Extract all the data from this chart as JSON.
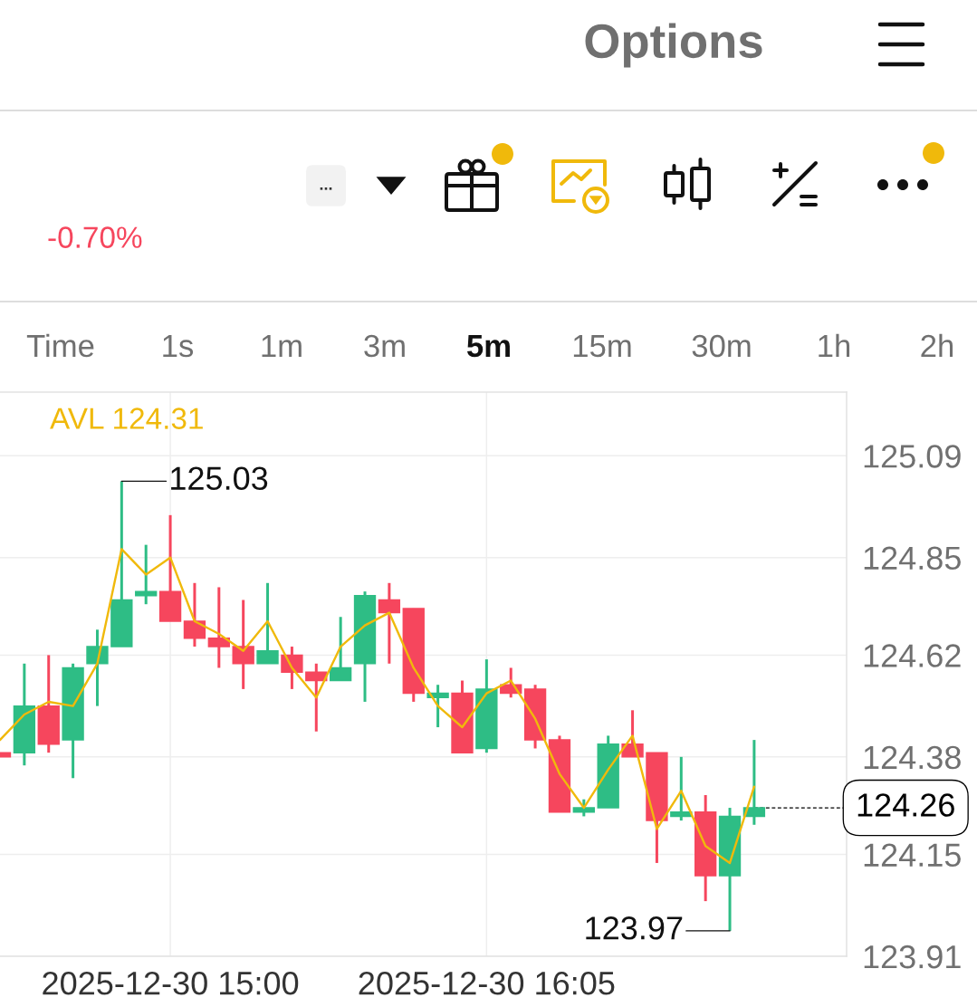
{
  "chart_data": {
    "type": "candlestick",
    "subtitle": "-0.70%",
    "x": [
      "2025-12-30T14:25",
      "2025-12-30T14:30",
      "2025-12-30T14:35",
      "2025-12-30T14:40",
      "2025-12-30T14:45",
      "2025-12-30T14:50",
      "2025-12-30T14:55",
      "2025-12-30T15:00",
      "2025-12-30T15:05",
      "2025-12-30T15:10",
      "2025-12-30T15:15",
      "2025-12-30T15:20",
      "2025-12-30T15:25",
      "2025-12-30T15:30",
      "2025-12-30T15:35",
      "2025-12-30T15:40",
      "2025-12-30T15:45",
      "2025-12-30T15:50",
      "2025-12-30T15:55",
      "2025-12-30T16:00",
      "2025-12-30T16:05",
      "2025-12-30T16:10",
      "2025-12-30T16:15",
      "2025-12-30T16:20",
      "2025-12-30T16:25",
      "2025-12-30T16:30",
      "2025-12-30T16:35",
      "2025-12-30T16:40",
      "2025-12-30T16:45",
      "2025-12-30T16:50",
      "2025-12-30T16:55",
      "2025-12-30T17:00"
    ],
    "ohlc": [
      [
        124.39,
        124.39,
        124.38,
        124.38
      ],
      [
        124.39,
        124.6,
        124.36,
        124.5
      ],
      [
        124.5,
        124.62,
        124.39,
        124.41
      ],
      [
        124.42,
        124.6,
        124.33,
        124.59
      ],
      [
        124.6,
        124.68,
        124.5,
        124.64
      ],
      [
        124.64,
        125.03,
        124.64,
        124.75
      ],
      [
        124.76,
        124.88,
        124.74,
        124.77
      ],
      [
        124.77,
        124.95,
        124.7,
        124.7
      ],
      [
        124.7,
        124.79,
        124.64,
        124.66
      ],
      [
        124.66,
        124.78,
        124.59,
        124.64
      ],
      [
        124.64,
        124.75,
        124.54,
        124.6
      ],
      [
        124.6,
        124.79,
        124.6,
        124.63
      ],
      [
        124.62,
        124.64,
        124.54,
        124.58
      ],
      [
        124.58,
        124.6,
        124.44,
        124.56
      ],
      [
        124.56,
        124.71,
        124.56,
        124.59
      ],
      [
        124.6,
        124.77,
        124.51,
        124.76
      ],
      [
        124.75,
        124.79,
        124.6,
        124.72
      ],
      [
        124.73,
        124.73,
        124.51,
        124.53
      ],
      [
        124.52,
        124.55,
        124.45,
        124.53
      ],
      [
        124.53,
        124.56,
        124.39,
        124.39
      ],
      [
        124.4,
        124.61,
        124.39,
        124.54
      ],
      [
        124.55,
        124.59,
        124.52,
        124.53
      ],
      [
        124.54,
        124.55,
        124.4,
        124.42
      ],
      [
        124.42,
        124.43,
        124.25,
        124.25
      ],
      [
        124.25,
        124.28,
        124.24,
        124.26
      ],
      [
        124.26,
        124.43,
        124.26,
        124.41
      ],
      [
        124.41,
        124.49,
        124.38,
        124.38
      ],
      [
        124.39,
        124.39,
        124.13,
        124.23
      ],
      [
        124.24,
        124.38,
        124.23,
        124.25
      ],
      [
        124.25,
        124.29,
        124.04,
        124.1
      ],
      [
        124.1,
        124.26,
        123.97,
        124.24
      ],
      [
        124.24,
        124.42,
        124.22,
        124.26
      ]
    ],
    "colors": [
      "#f6465d",
      "#2ebd85",
      "#f6465d",
      "#2ebd85",
      "#2ebd85",
      "#2ebd85",
      "#2ebd85",
      "#f6465d",
      "#f6465d",
      "#f6465d",
      "#f6465d",
      "#2ebd85",
      "#f6465d",
      "#f6465d",
      "#2ebd85",
      "#2ebd85",
      "#f6465d",
      "#f6465d",
      "#2ebd85",
      "#f6465d",
      "#2ebd85",
      "#f6465d",
      "#f6465d",
      "#f6465d",
      "#2ebd85",
      "#2ebd85",
      "#f6465d",
      "#f6465d",
      "#2ebd85",
      "#f6465d",
      "#2ebd85",
      "#2ebd85"
    ],
    "series": [
      {
        "name": "AVL 124.31",
        "type": "line",
        "color": "#f0b90b",
        "values": [
          124.42,
          124.48,
          124.51,
          124.5,
          124.6,
          124.87,
          124.81,
          124.85,
          124.7,
          124.67,
          124.63,
          124.7,
          124.59,
          124.52,
          124.64,
          124.69,
          124.72,
          124.59,
          124.5,
          124.45,
          124.53,
          124.56,
          124.47,
          124.34,
          124.26,
          124.35,
          124.43,
          124.21,
          124.3,
          124.17,
          124.13,
          124.31
        ]
      }
    ],
    "xlim": [
      "2025-12-30T14:25",
      "2025-12-30T17:19"
    ],
    "ylim": [
      123.91,
      125.24
    ],
    "xticks": [
      {
        "value": "2025-12-30T15:00",
        "label": "2025-12-30 15:00"
      },
      {
        "value": "2025-12-30T16:05",
        "label": "2025-12-30 16:05"
      }
    ],
    "yticks": [
      123.91,
      124.15,
      124.38,
      124.62,
      124.85,
      125.09
    ],
    "grid": true,
    "ref_lines": [
      {
        "axis": "y",
        "value": 124.26,
        "label": "124.26",
        "line_style": "dashed",
        "color": "#000000"
      }
    ],
    "annotations": [
      "Options",
      "...",
      "Time",
      "1s",
      "1m",
      "3m",
      "5m",
      "15m",
      "30m",
      "1h",
      "2h",
      {
        "text": "125.03",
        "x": "2025-12-30T14:50",
        "y": 125.03
      },
      {
        "text": "123.97",
        "x": "2025-12-30T16:55",
        "y": 123.97
      }
    ]
  }
}
